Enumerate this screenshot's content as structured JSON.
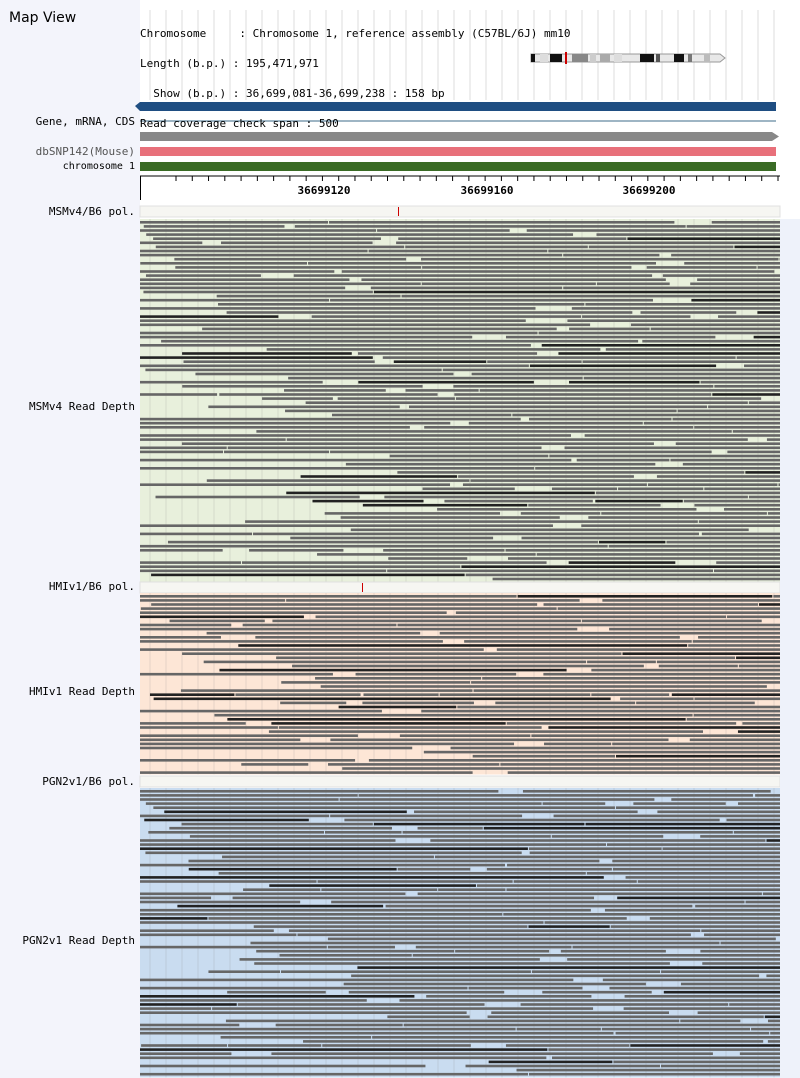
{
  "app": {
    "title": "Map View"
  },
  "info": [
    {
      "label": "Chromosome    ",
      "sep": " : ",
      "value": "Chromosome 1, reference assembly (C57BL/6J) mm10"
    },
    {
      "label": "Length (b.p.) ",
      "sep": ": ",
      "value": "195,471,971"
    },
    {
      "label": "  Show (b.p.) ",
      "sep": ": ",
      "value": "36,699,081-36,699,238 : 158 bp"
    },
    {
      "label": "Read coverage check span ",
      "sep": ": ",
      "value": "500"
    }
  ],
  "tracks": {
    "gene": {
      "label": "Gene, mRNA, CDS",
      "color": "#1f4e82"
    },
    "gene2": {
      "color": "#888888"
    },
    "dbsnp": {
      "label": "dbSNP142(Mouse)",
      "color": "#e8707a"
    },
    "chrom": {
      "label": "chromosome 1",
      "color": "#3a6b25"
    }
  },
  "ruler": {
    "ticks": [
      "36699120",
      "36699160",
      "36699200"
    ]
  },
  "panels": [
    {
      "pol_label": "MSMv4/B6 pol.",
      "depth_label": "MSMv4 Read Depth",
      "bg": "#e8f0dc",
      "marker": 1
    },
    {
      "pol_label": "HMIv1/B6 pol.",
      "depth_label": "HMIv1 Read Depth",
      "bg": "#fde6d6",
      "marker": 1
    },
    {
      "pol_label": "PGN2v1/B6 pol.",
      "depth_label": "PGN2v1 Read Depth",
      "bg": "#c9dcf0",
      "marker": 0
    }
  ],
  "colors": {
    "read": "#666666",
    "read_dark": "#222222",
    "marker": "#cc0000",
    "grid": "#c8c8c8"
  }
}
